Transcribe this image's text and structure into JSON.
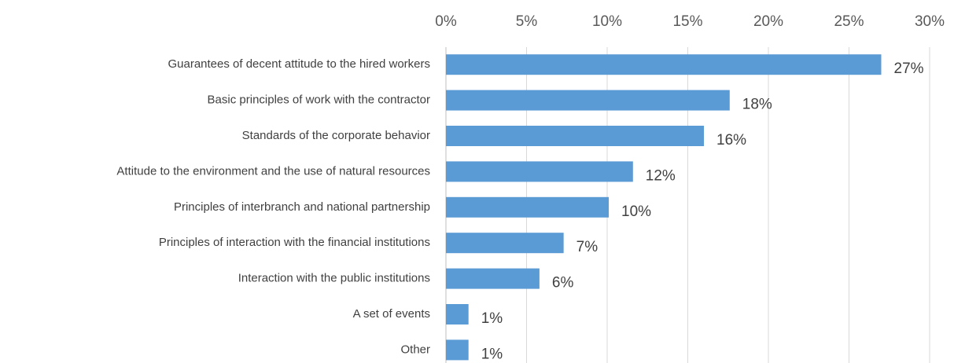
{
  "chart_data": {
    "type": "bar",
    "orientation": "horizontal",
    "categories": [
      "Guarantees of decent attitude to the hired workers",
      "Basic principles of work with the contractor",
      "Standards of the corporate behavior ",
      "Attitude to the environment and the use of natural resources",
      "Principles of interbranch and national partnership",
      "Principles of interaction with the financial institutions",
      "Interaction with the public institutions",
      "A set of events",
      "Other"
    ],
    "values": [
      27,
      17.6,
      16,
      11.6,
      10.1,
      7.3,
      5.8,
      1.4,
      1.4
    ],
    "value_labels": [
      "27%",
      "18%",
      "16%",
      "12%",
      "10%",
      "7%",
      "6%",
      "1%",
      "1%"
    ],
    "color": "#5b9bd5",
    "xlim": [
      0,
      30
    ],
    "xticks": [
      {
        "value": 0,
        "label": "0%"
      },
      {
        "value": 5,
        "label": "5%"
      },
      {
        "value": 10,
        "label": "10%"
      },
      {
        "value": 15,
        "label": "15%"
      },
      {
        "value": 20,
        "label": "20%"
      },
      {
        "value": 25,
        "label": "25%"
      },
      {
        "value": 30,
        "label": "30%"
      }
    ],
    "grid": true
  }
}
